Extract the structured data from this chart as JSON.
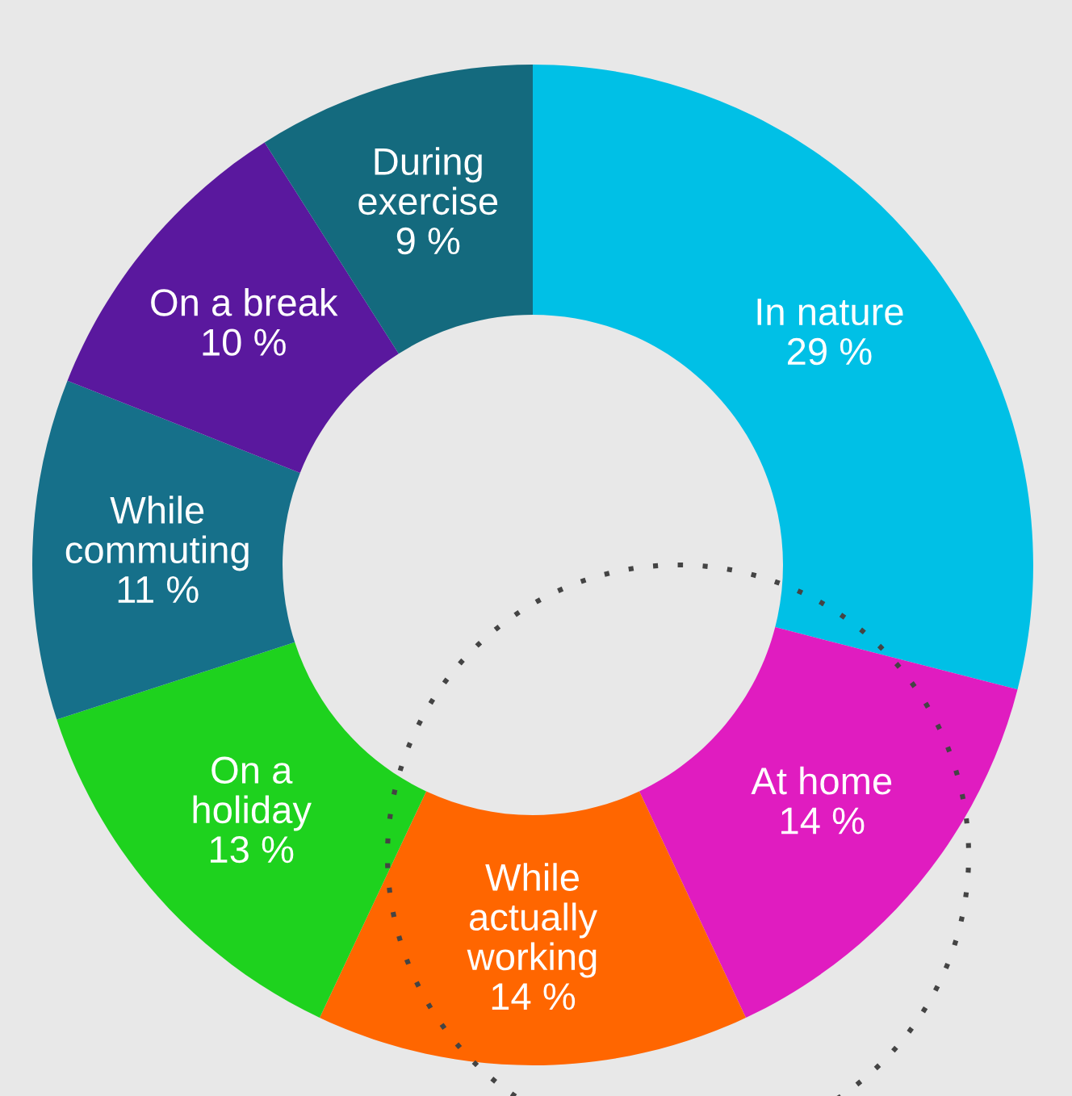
{
  "chart_data": {
    "type": "donut",
    "categories": [
      "In nature",
      "At home",
      "While actually working",
      "On a holiday",
      "While commuting",
      "On a break",
      "During exercise"
    ],
    "values": [
      29,
      14,
      14,
      13,
      11,
      10,
      9
    ],
    "value_labels": [
      "29 %",
      "14 %",
      "14 %",
      "13 %",
      "11 %",
      "10 %",
      "9 %"
    ],
    "colors": [
      "#00c0e6",
      "#e01cc0",
      "#ff6600",
      "#1ed21e",
      "#16708a",
      "#5a189e",
      "#146a7e"
    ],
    "legend": false
  }
}
